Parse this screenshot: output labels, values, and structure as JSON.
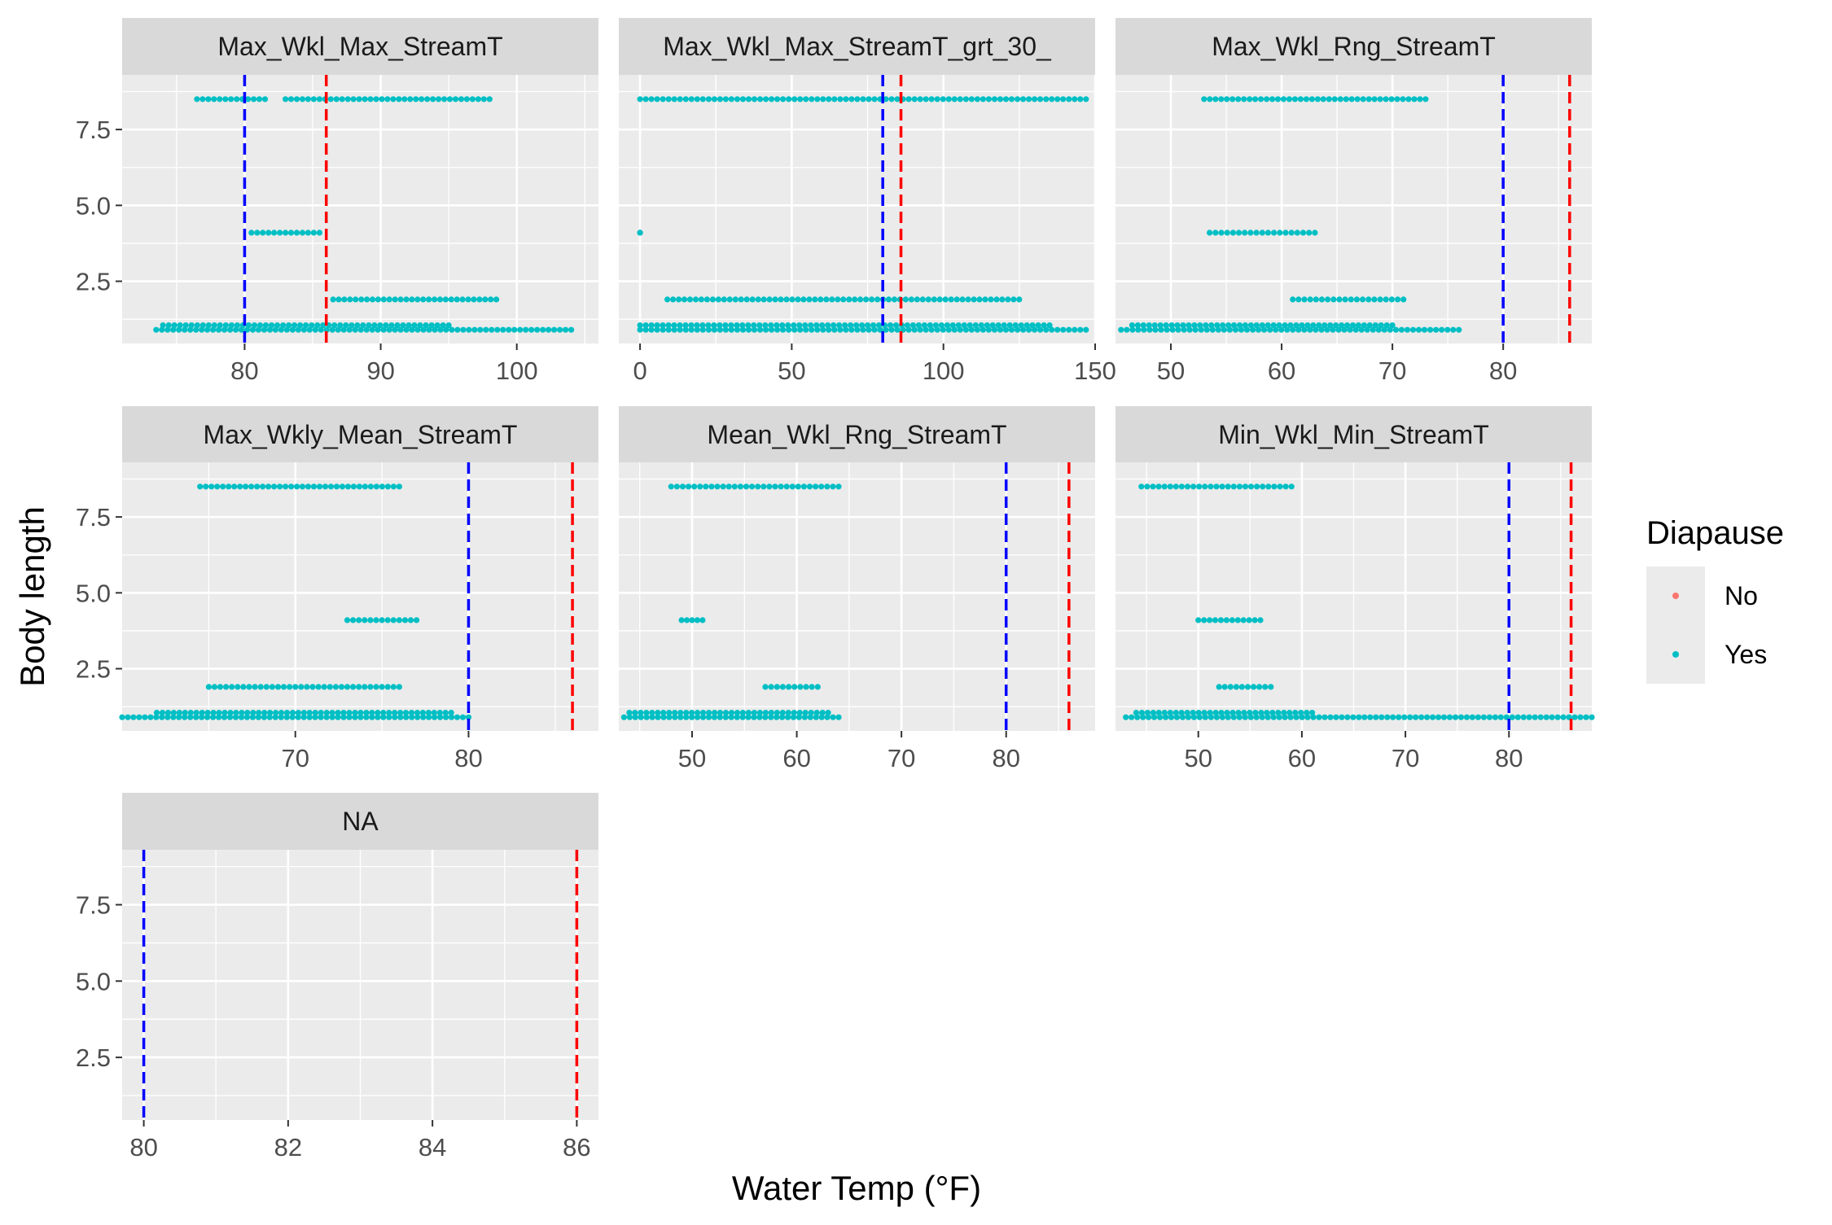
{
  "chart_data": {
    "type": "scatter",
    "xlabel": "Water Temp (°F)",
    "ylabel": "Body length",
    "legend": {
      "title": "Diapause",
      "position": "right",
      "entries": [
        {
          "label": "No",
          "color": "#F8766D"
        },
        {
          "label": "Yes",
          "color": "#00BFC4"
        }
      ]
    },
    "reference_lines": [
      {
        "x": 80,
        "color": "#0000FF",
        "style": "dashed"
      },
      {
        "x": 86,
        "color": "#FF0000",
        "style": "dashed"
      }
    ],
    "ylim": [
      0.45,
      9.3
    ],
    "yticks": [
      2.5,
      5.0,
      7.5
    ],
    "ytick_labels": [
      "2.5",
      "5.0",
      "7.5"
    ],
    "panel_background": "#EBEBEB",
    "strip_background": "#D9D9D9",
    "grid": true,
    "facets": [
      {
        "label": "Max_Wkl_Max_StreamT",
        "xlim": [
          71,
          106
        ],
        "xticks": [
          80,
          90,
          100
        ],
        "series": [
          {
            "name": "Yes",
            "segments": [
              {
                "y": 8.5,
                "x": [
                  76.5,
                  81.5
                ]
              },
              {
                "y": 8.5,
                "x": [
                  83,
                  98
                ]
              },
              {
                "y": 4.1,
                "x": [
                  80.5,
                  85.5
                ]
              },
              {
                "y": 1.9,
                "x": [
                  86.5,
                  98.5
                ]
              },
              {
                "y": 0.9,
                "x": [
                  73.5,
                  104
                ]
              },
              {
                "y": 1.05,
                "x": [
                  74,
                  95
                ]
              }
            ]
          }
        ]
      },
      {
        "label": "Max_Wkl_Max_StreamT_grt_30_",
        "xlim": [
          -7,
          150
        ],
        "xticks": [
          0,
          50,
          100,
          150
        ],
        "series": [
          {
            "name": "Yes",
            "segments": [
              {
                "y": 8.5,
                "x": [
                  0,
                  147
                ]
              },
              {
                "y": 4.1,
                "x": [
                  0,
                  0
                ]
              },
              {
                "y": 1.9,
                "x": [
                  9,
                  125
                ]
              },
              {
                "y": 0.9,
                "x": [
                  0,
                  147
                ]
              },
              {
                "y": 1.05,
                "x": [
                  0,
                  135
                ]
              }
            ]
          }
        ]
      },
      {
        "label": "Max_Wkl_Rng_StreamT",
        "xlim": [
          45,
          88
        ],
        "xticks": [
          50,
          60,
          70,
          80
        ],
        "series": [
          {
            "name": "Yes",
            "segments": [
              {
                "y": 8.5,
                "x": [
                  53,
                  73
                ]
              },
              {
                "y": 4.1,
                "x": [
                  53.5,
                  63
                ]
              },
              {
                "y": 1.9,
                "x": [
                  61,
                  71
                ]
              },
              {
                "y": 0.9,
                "x": [
                  45.5,
                  76
                ]
              },
              {
                "y": 1.05,
                "x": [
                  46.5,
                  70
                ]
              }
            ]
          }
        ]
      },
      {
        "label": "Max_Wkly_Mean_StreamT",
        "xlim": [
          60,
          87.5
        ],
        "xticks": [
          70,
          80
        ],
        "series": [
          {
            "name": "Yes",
            "segments": [
              {
                "y": 8.5,
                "x": [
                  64.5,
                  76
                ]
              },
              {
                "y": 4.1,
                "x": [
                  73,
                  77
                ]
              },
              {
                "y": 1.9,
                "x": [
                  65,
                  76
                ]
              },
              {
                "y": 0.9,
                "x": [
                  60,
                  80
                ]
              },
              {
                "y": 1.05,
                "x": [
                  62,
                  79
                ]
              }
            ]
          }
        ]
      },
      {
        "label": "Mean_Wkl_Rng_StreamT",
        "xlim": [
          43,
          88.5
        ],
        "xticks": [
          50,
          60,
          70,
          80
        ],
        "series": [
          {
            "name": "Yes",
            "segments": [
              {
                "y": 8.5,
                "x": [
                  48,
                  64
                ]
              },
              {
                "y": 4.1,
                "x": [
                  49,
                  51
                ]
              },
              {
                "y": 1.9,
                "x": [
                  57,
                  62
                ]
              },
              {
                "y": 0.9,
                "x": [
                  43.5,
                  64
                ]
              },
              {
                "y": 1.05,
                "x": [
                  44,
                  63
                ]
              }
            ]
          }
        ]
      },
      {
        "label": "Min_Wkl_Min_StreamT",
        "xlim": [
          42,
          88
        ],
        "xticks": [
          50,
          60,
          70,
          80
        ],
        "series": [
          {
            "name": "Yes",
            "segments": [
              {
                "y": 8.5,
                "x": [
                  44.5,
                  59
                ]
              },
              {
                "y": 4.1,
                "x": [
                  50,
                  56
                ]
              },
              {
                "y": 1.9,
                "x": [
                  52,
                  57
                ]
              },
              {
                "y": 0.9,
                "x": [
                  43,
                  88
                ]
              },
              {
                "y": 1.05,
                "x": [
                  44,
                  61
                ]
              }
            ]
          }
        ]
      },
      {
        "label": "NA",
        "xlim": [
          79.7,
          86.3
        ],
        "xticks": [
          80,
          82,
          84,
          86
        ],
        "series": [
          {
            "name": "Yes",
            "segments": []
          }
        ]
      }
    ]
  }
}
